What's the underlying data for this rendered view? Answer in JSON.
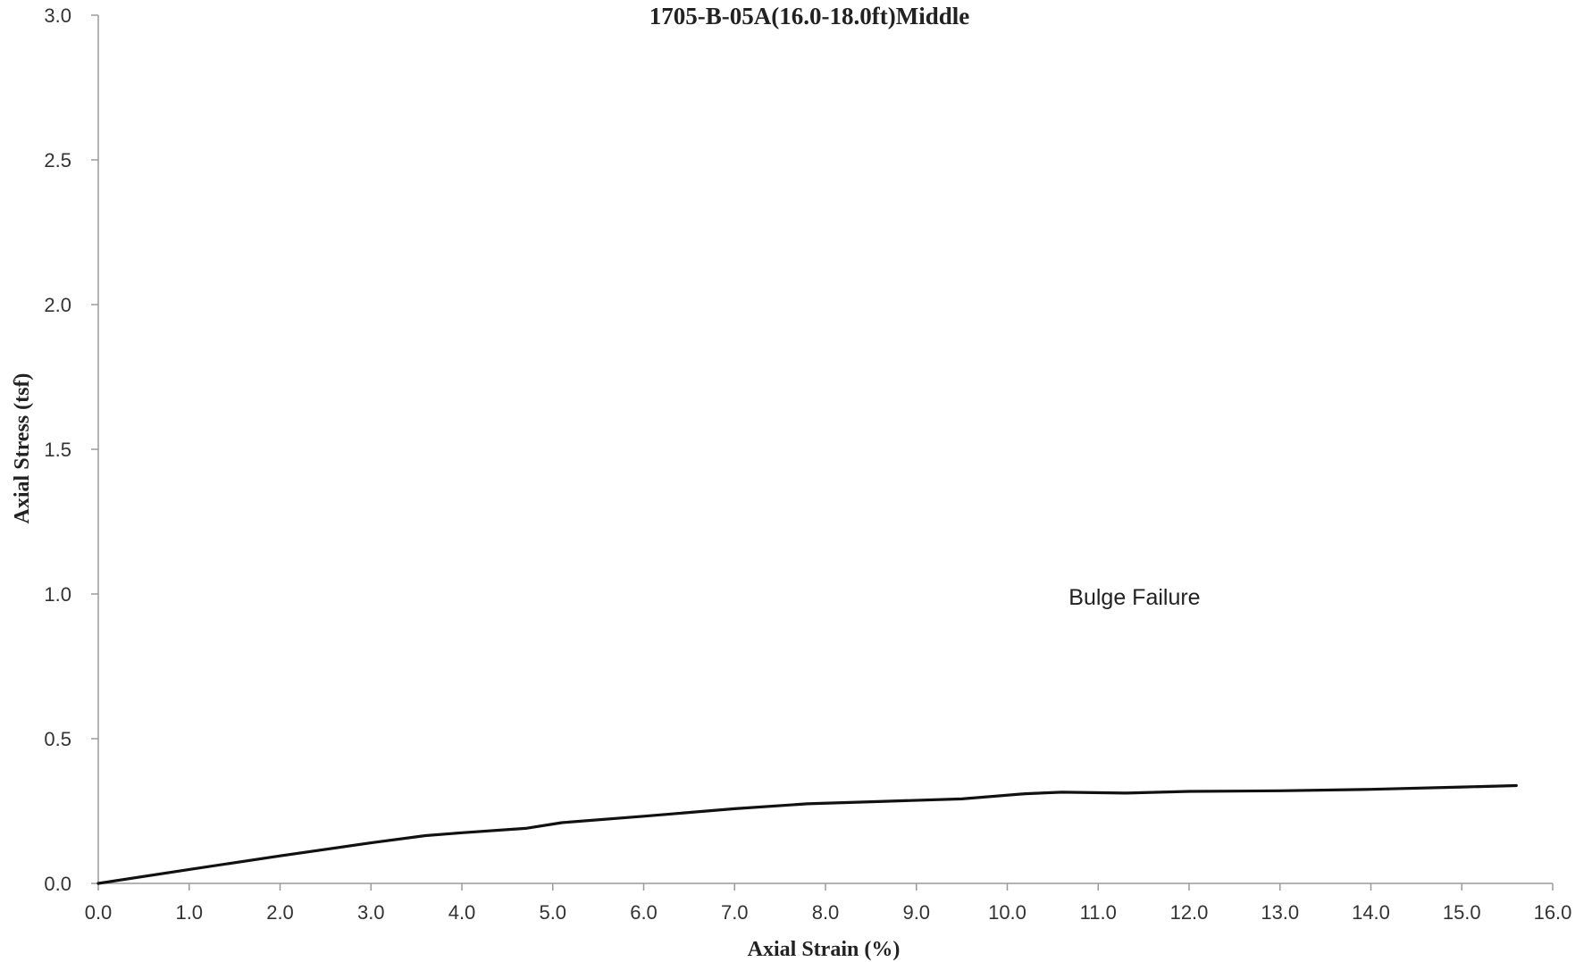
{
  "chart_data": {
    "type": "line",
    "title": "1705-B-05A(16.0-18.0ft)Middle",
    "xlabel": "Axial Strain (%)",
    "ylabel": "Axial Stress (tsf)",
    "xlim": [
      0,
      16
    ],
    "ylim": [
      0,
      3
    ],
    "xticks": [
      "0.0",
      "1.0",
      "2.0",
      "3.0",
      "4.0",
      "5.0",
      "6.0",
      "7.0",
      "8.0",
      "9.0",
      "10.0",
      "11.0",
      "12.0",
      "13.0",
      "14.0",
      "15.0",
      "16.0"
    ],
    "yticks": [
      "0.0",
      "0.5",
      "1.0",
      "1.5",
      "2.0",
      "2.5",
      "3.0"
    ],
    "grid": false,
    "annotations": [
      {
        "text": "Bulge Failure",
        "x": 11.4,
        "y": 0.99
      }
    ],
    "series": [
      {
        "color": "#111111",
        "x": [
          0.0,
          1.0,
          2.0,
          3.0,
          3.6,
          4.0,
          4.7,
          5.1,
          6.0,
          7.0,
          7.8,
          8.5,
          9.5,
          10.2,
          10.6,
          11.3,
          12.0,
          13.0,
          14.0,
          15.0,
          15.6
        ],
        "y": [
          0.0,
          0.048,
          0.095,
          0.14,
          0.165,
          0.175,
          0.19,
          0.21,
          0.232,
          0.258,
          0.275,
          0.282,
          0.292,
          0.31,
          0.315,
          0.312,
          0.318,
          0.32,
          0.325,
          0.333,
          0.338
        ]
      }
    ]
  }
}
